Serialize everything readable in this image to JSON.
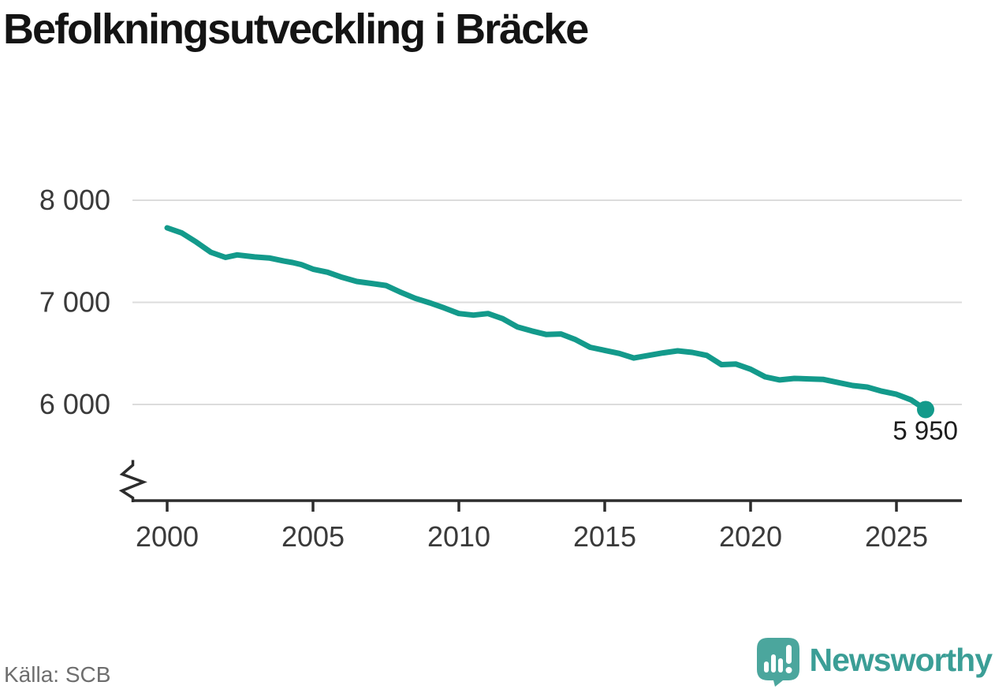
{
  "title": "Befolkningsutveckling i Bräcke",
  "source": "Källa: SCB",
  "branding": {
    "name": "Newsworthy",
    "icon": "bar-chart-speech-bubble-icon",
    "icon_color": "#4BA69D",
    "text_color": "#3B9E96"
  },
  "colors": {
    "line": "#139A8B",
    "grid": "#dcdcdc",
    "axis": "#2d2d2d",
    "tick_text": "#3a3a3a",
    "title_text": "#141414",
    "source_text": "#6e6e6e"
  },
  "chart_data": {
    "type": "line",
    "title": "Befolkningsutveckling i Bräcke",
    "xlabel": "",
    "ylabel": "",
    "grid": "horizontal",
    "axis_break_on_y": true,
    "legend": "none",
    "ylim": [
      5900,
      8050
    ],
    "xlim": [
      1998.7,
      2027.3
    ],
    "y_ticks": [
      {
        "value": 8000,
        "label": "8 000"
      },
      {
        "value": 7000,
        "label": "7 000"
      },
      {
        "value": 6000,
        "label": "6 000"
      }
    ],
    "x_ticks": [
      {
        "value": 2000,
        "label": "2000"
      },
      {
        "value": 2005,
        "label": "2005"
      },
      {
        "value": 2010,
        "label": "2010"
      },
      {
        "value": 2015,
        "label": "2015"
      },
      {
        "value": 2020,
        "label": "2020"
      },
      {
        "value": 2025,
        "label": "2025"
      }
    ],
    "annotation": {
      "label": "5 950",
      "value": 5950,
      "x": 2026.0
    },
    "series": [
      {
        "name": "Befolkning i Bräcke",
        "color": "#139A8B",
        "end_dot": true,
        "points": [
          [
            2000.0,
            7730
          ],
          [
            2000.5,
            7680
          ],
          [
            2001.0,
            7590
          ],
          [
            2001.5,
            7490
          ],
          [
            2002.0,
            7440
          ],
          [
            2002.4,
            7465
          ],
          [
            2003.0,
            7445
          ],
          [
            2003.5,
            7435
          ],
          [
            2004.0,
            7405
          ],
          [
            2004.3,
            7390
          ],
          [
            2004.6,
            7370
          ],
          [
            2005.0,
            7325
          ],
          [
            2005.5,
            7295
          ],
          [
            2006.0,
            7245
          ],
          [
            2006.5,
            7205
          ],
          [
            2007.0,
            7185
          ],
          [
            2007.5,
            7165
          ],
          [
            2008.0,
            7100
          ],
          [
            2008.5,
            7040
          ],
          [
            2009.0,
            6995
          ],
          [
            2009.5,
            6945
          ],
          [
            2010.0,
            6890
          ],
          [
            2010.5,
            6875
          ],
          [
            2011.0,
            6890
          ],
          [
            2011.5,
            6840
          ],
          [
            2012.0,
            6760
          ],
          [
            2012.5,
            6720
          ],
          [
            2013.0,
            6685
          ],
          [
            2013.5,
            6690
          ],
          [
            2014.0,
            6635
          ],
          [
            2014.5,
            6560
          ],
          [
            2015.0,
            6530
          ],
          [
            2015.5,
            6500
          ],
          [
            2016.0,
            6455
          ],
          [
            2016.5,
            6480
          ],
          [
            2017.0,
            6505
          ],
          [
            2017.5,
            6525
          ],
          [
            2018.0,
            6510
          ],
          [
            2018.5,
            6480
          ],
          [
            2019.0,
            6390
          ],
          [
            2019.5,
            6395
          ],
          [
            2020.0,
            6345
          ],
          [
            2020.5,
            6270
          ],
          [
            2021.0,
            6240
          ],
          [
            2021.5,
            6255
          ],
          [
            2022.0,
            6250
          ],
          [
            2022.5,
            6245
          ],
          [
            2023.0,
            6215
          ],
          [
            2023.5,
            6185
          ],
          [
            2024.0,
            6170
          ],
          [
            2024.5,
            6130
          ],
          [
            2025.0,
            6100
          ],
          [
            2025.5,
            6045
          ],
          [
            2026.0,
            5950
          ]
        ]
      }
    ]
  }
}
